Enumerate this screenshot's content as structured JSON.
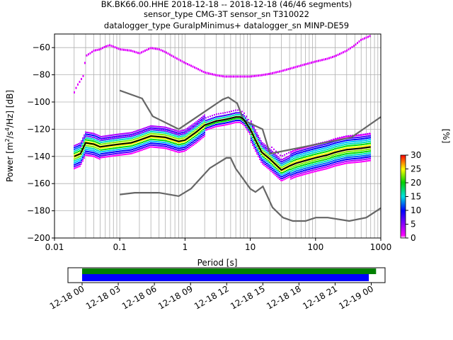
{
  "title_lines": [
    "BK.BK66.00.HHE   2018-12-18 -- 2018-12-18  (46/46 segments)",
    "sensor_type CMG-3T sensor_sn T310022",
    "datalogger_type GuralpMinimus+ datalogger_sn MINP-DE59"
  ],
  "colorbar": {
    "label": "[%]",
    "ticks": [
      "0",
      "5",
      "10",
      "15",
      "20",
      "25",
      "30"
    ]
  },
  "timeline": {
    "tick_labels": [
      "12-18 00",
      "12-18 03",
      "12-18 06",
      "12-18 09",
      "12-18 12",
      "12-18 15",
      "12-18 18",
      "12-18 21",
      "12-19 00"
    ],
    "data_coverage_color": "#008000",
    "psd_coverage_color": "#0000ff",
    "data_coverage_hours": [
      0,
      24.4
    ],
    "psd_coverage_hours": [
      0,
      23.8
    ]
  },
  "chart_data": {
    "type": "heatmap",
    "xlabel": "Period [s]",
    "ylabel_parts": [
      "Power [m",
      "2",
      "/s",
      "4",
      "/Hz] [dB]"
    ],
    "x_scale": "log",
    "xlim": [
      0.01,
      1000
    ],
    "ylim": [
      -200,
      -50
    ],
    "x_tick_labels": [
      "0.01",
      "0.1",
      "1",
      "10",
      "100",
      "1000"
    ],
    "y_ticks": [
      -200,
      -180,
      -160,
      -140,
      -120,
      -100,
      -80,
      -60
    ],
    "grid": true,
    "nhnm": {
      "period": [
        0.1,
        0.22,
        0.32,
        0.8,
        3.8,
        4.6,
        6.3,
        7.9,
        15.4,
        20,
        354.8,
        1000
      ],
      "power": [
        -91.5,
        -97.4,
        -110.5,
        -120,
        -98,
        -96.5,
        -101,
        -113.5,
        -120,
        -138,
        -126,
        -111
      ]
    },
    "nlnm": {
      "period": [
        0.1,
        0.17,
        0.4,
        0.8,
        1.24,
        2.4,
        4.3,
        5,
        6,
        10,
        12,
        15.6,
        21.9,
        31.6,
        45,
        70,
        101,
        154,
        328,
        600,
        1000
      ],
      "power": [
        -168,
        -166.7,
        -166.7,
        -169.2,
        -163.7,
        -148.6,
        -141.1,
        -141.1,
        -149,
        -163.8,
        -166.2,
        -162.1,
        -177.5,
        -185,
        -187.5,
        -187.5,
        -185,
        -185,
        -187.5,
        -185,
        -178
      ]
    },
    "mode": {
      "period": [
        0.02,
        0.025,
        0.03,
        0.04,
        0.05,
        0.07,
        0.1,
        0.15,
        0.2,
        0.3,
        0.5,
        0.8,
        1,
        1.5,
        2,
        3,
        4,
        5,
        6,
        7,
        8,
        10,
        12,
        15,
        20,
        30,
        40,
        50,
        70,
        100,
        150,
        200,
        300,
        500,
        700
      ],
      "power": [
        -140,
        -138,
        -130,
        -131,
        -133,
        -132,
        -131,
        -130,
        -128,
        -125,
        -126,
        -129,
        -128,
        -122,
        -117,
        -114,
        -113,
        -112,
        -111,
        -111,
        -113,
        -120,
        -128,
        -137,
        -142,
        -150,
        -147,
        -145,
        -143,
        -141,
        -139,
        -137,
        -135,
        -134,
        -133
      ]
    },
    "high_upper": {
      "period": [
        0.02,
        0.022,
        0.025,
        0.028,
        0.03,
        0.035,
        0.04,
        0.05,
        0.06,
        0.07,
        0.08,
        0.1,
        0.15,
        0.2,
        0.3,
        0.4,
        0.5,
        0.7,
        1,
        1.5,
        2,
        3,
        4,
        5,
        7,
        10,
        15,
        20,
        30,
        50,
        70,
        100,
        150,
        200,
        300,
        400,
        500,
        700
      ],
      "power": [
        -93,
        -88,
        -84,
        -80,
        -66,
        -64,
        -62,
        -61,
        -59,
        -58,
        -59,
        -61,
        -62,
        -64,
        -60,
        -61,
        -63,
        -67,
        -71,
        -75,
        -78,
        -80,
        -81,
        -81,
        -81,
        -81,
        -80,
        -79,
        -77,
        -74,
        -72,
        -70,
        -68,
        -66,
        -62,
        -58,
        -54,
        -51
      ]
    },
    "color_range_percent": [
      0,
      30
    ]
  }
}
